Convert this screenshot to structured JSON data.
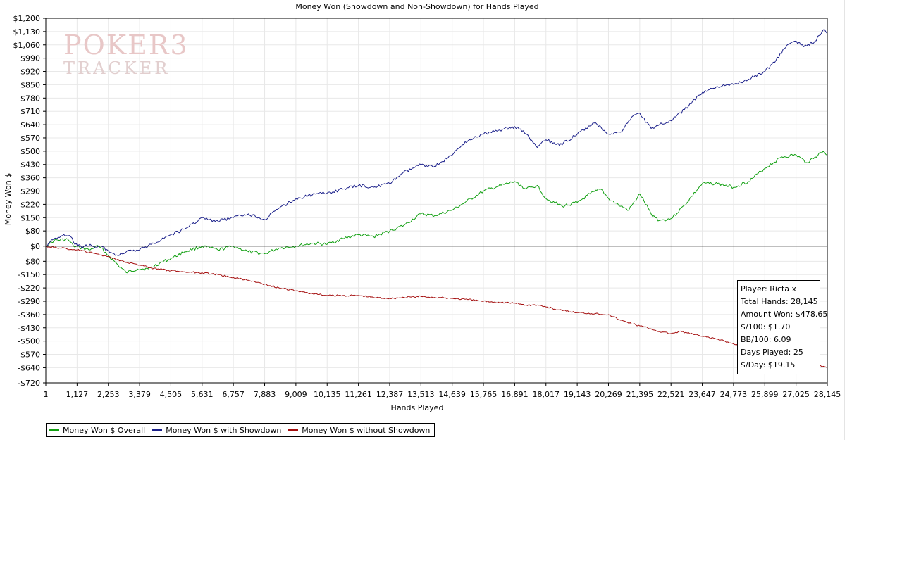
{
  "chart_data": {
    "type": "line",
    "title": "Money Won (Showdown and Non-Showdown) for Hands Played",
    "xlabel": "Hands Played",
    "ylabel": "Money Won $",
    "xlim": [
      1,
      28145
    ],
    "ylim": [
      -720,
      1200
    ],
    "x_ticks": [
      "1",
      "1,127",
      "2,253",
      "3,379",
      "4,505",
      "5,631",
      "6,757",
      "7,883",
      "9,009",
      "10,135",
      "11,261",
      "12,387",
      "13,513",
      "14,639",
      "15,765",
      "16,891",
      "18,017",
      "19,143",
      "20,269",
      "21,395",
      "22,521",
      "23,647",
      "24,773",
      "25,899",
      "27,025",
      "28,145"
    ],
    "y_ticks": [
      {
        "value": 1200,
        "label": "$1,200"
      },
      {
        "value": 1130,
        "label": "$1,130"
      },
      {
        "value": 1060,
        "label": "$1,060"
      },
      {
        "value": 990,
        "label": "$990"
      },
      {
        "value": 920,
        "label": "$920"
      },
      {
        "value": 850,
        "label": "$850"
      },
      {
        "value": 780,
        "label": "$780"
      },
      {
        "value": 710,
        "label": "$710"
      },
      {
        "value": 640,
        "label": "$640"
      },
      {
        "value": 570,
        "label": "$570"
      },
      {
        "value": 500,
        "label": "$500"
      },
      {
        "value": 430,
        "label": "$430"
      },
      {
        "value": 360,
        "label": "$360"
      },
      {
        "value": 290,
        "label": "$290"
      },
      {
        "value": 220,
        "label": "$220"
      },
      {
        "value": 150,
        "label": "$150"
      },
      {
        "value": 80,
        "label": "$80"
      },
      {
        "value": 0,
        "label": "$0"
      },
      {
        "value": -80,
        "label": "-$80"
      },
      {
        "value": -150,
        "label": "-$150"
      },
      {
        "value": -220,
        "label": "-$220"
      },
      {
        "value": -290,
        "label": "-$290"
      },
      {
        "value": -360,
        "label": "-$360"
      },
      {
        "value": -430,
        "label": "-$430"
      },
      {
        "value": -500,
        "label": "-$500"
      },
      {
        "value": -570,
        "label": "-$570"
      },
      {
        "value": -640,
        "label": "-$640"
      },
      {
        "value": -720,
        "label": "-$720"
      }
    ],
    "grid": true,
    "legend_position": "bottom-left",
    "series": [
      {
        "name": "Money Won $ Overall",
        "color": "#12a012",
        "x": [
          1,
          300,
          800,
          1000,
          1300,
          1600,
          1800,
          2000,
          2253,
          2600,
          2900,
          3300,
          3700,
          4100,
          4505,
          5000,
          5631,
          6200,
          6757,
          7300,
          7883,
          8400,
          9009,
          9600,
          10135,
          10700,
          11261,
          11800,
          12387,
          12900,
          13513,
          14000,
          14639,
          15100,
          15765,
          16300,
          16891,
          17300,
          17700,
          18017,
          18600,
          19143,
          19600,
          20000,
          20269,
          20700,
          21000,
          21395,
          21800,
          22100,
          22521,
          23000,
          23647,
          24200,
          24773,
          25300,
          25899,
          26500,
          27025,
          27400,
          27700,
          28000,
          28145
        ],
        "y": [
          0,
          30,
          35,
          0,
          -10,
          -20,
          0,
          -10,
          -50,
          -100,
          -140,
          -120,
          -120,
          -90,
          -65,
          -30,
          0,
          -20,
          0,
          -30,
          -40,
          -10,
          0,
          15,
          10,
          40,
          60,
          50,
          80,
          110,
          170,
          160,
          190,
          230,
          290,
          315,
          340,
          300,
          320,
          250,
          210,
          230,
          275,
          300,
          250,
          210,
          190,
          275,
          170,
          135,
          145,
          215,
          330,
          330,
          310,
          340,
          410,
          470,
          480,
          440,
          470,
          500,
          480
        ]
      },
      {
        "name": "Money Won $ with Showdown",
        "color": "#1a1f8a",
        "x": [
          1,
          300,
          600,
          900,
          1000,
          1300,
          1600,
          1800,
          2000,
          2253,
          2600,
          2900,
          3379,
          3800,
          4505,
          5000,
          5631,
          6100,
          6757,
          7300,
          7883,
          8400,
          9009,
          9600,
          10135,
          10700,
          11261,
          11800,
          12387,
          12800,
          13513,
          14000,
          14639,
          15100,
          15765,
          16300,
          16891,
          17300,
          17700,
          18017,
          18500,
          19143,
          19800,
          20269,
          20700,
          21100,
          21395,
          21800,
          22100,
          22521,
          23000,
          23647,
          24200,
          24773,
          25300,
          25899,
          26300,
          26700,
          27025,
          27300,
          27700,
          28000,
          28145
        ],
        "y": [
          0,
          40,
          55,
          50,
          20,
          -10,
          10,
          -10,
          0,
          -25,
          -50,
          -30,
          -20,
          10,
          60,
          90,
          150,
          130,
          150,
          170,
          140,
          200,
          250,
          270,
          280,
          300,
          320,
          310,
          330,
          380,
          430,
          420,
          480,
          550,
          590,
          610,
          630,
          590,
          520,
          560,
          530,
          590,
          650,
          590,
          600,
          680,
          700,
          620,
          640,
          660,
          720,
          810,
          840,
          850,
          880,
          920,
          980,
          1060,
          1080,
          1050,
          1080,
          1140,
          1120
        ]
      },
      {
        "name": "Money Won $ without Showdown",
        "color": "#a40e0e",
        "x": [
          1,
          500,
          1127,
          1800,
          2253,
          2800,
          3379,
          3800,
          4505,
          5000,
          5631,
          6200,
          6757,
          7300,
          7883,
          8400,
          9009,
          9600,
          10135,
          10700,
          11261,
          11800,
          12387,
          12900,
          13513,
          14000,
          14639,
          15100,
          15765,
          16300,
          16891,
          17300,
          17700,
          18017,
          18600,
          19143,
          19800,
          20269,
          20700,
          21395,
          21800,
          22100,
          22521,
          22900,
          23647,
          24200,
          24773,
          25300,
          25899,
          26500,
          27025,
          27600,
          28145
        ],
        "y": [
          0,
          -10,
          -20,
          -40,
          -55,
          -80,
          -100,
          -115,
          -130,
          -135,
          -140,
          -150,
          -165,
          -180,
          -200,
          -220,
          -235,
          -250,
          -260,
          -260,
          -260,
          -270,
          -275,
          -270,
          -265,
          -270,
          -275,
          -280,
          -290,
          -295,
          -300,
          -310,
          -310,
          -320,
          -340,
          -350,
          -355,
          -360,
          -390,
          -420,
          -435,
          -450,
          -460,
          -450,
          -475,
          -490,
          -515,
          -540,
          -550,
          -580,
          -600,
          -620,
          -640
        ]
      }
    ],
    "info_box": [
      "Player: Ricta x",
      "Total Hands: 28,145",
      "Amount Won: $478.65",
      "$/100: $1.70",
      "BB/100: 6.09",
      "Days Played: 25",
      "$/Day: $19.15"
    ]
  },
  "watermark": {
    "line1": "POKER3",
    "line2": "TRACKER"
  },
  "colors": {
    "grid": "#e8e8e8",
    "axis": "#000000",
    "zero_line": "#000000"
  }
}
